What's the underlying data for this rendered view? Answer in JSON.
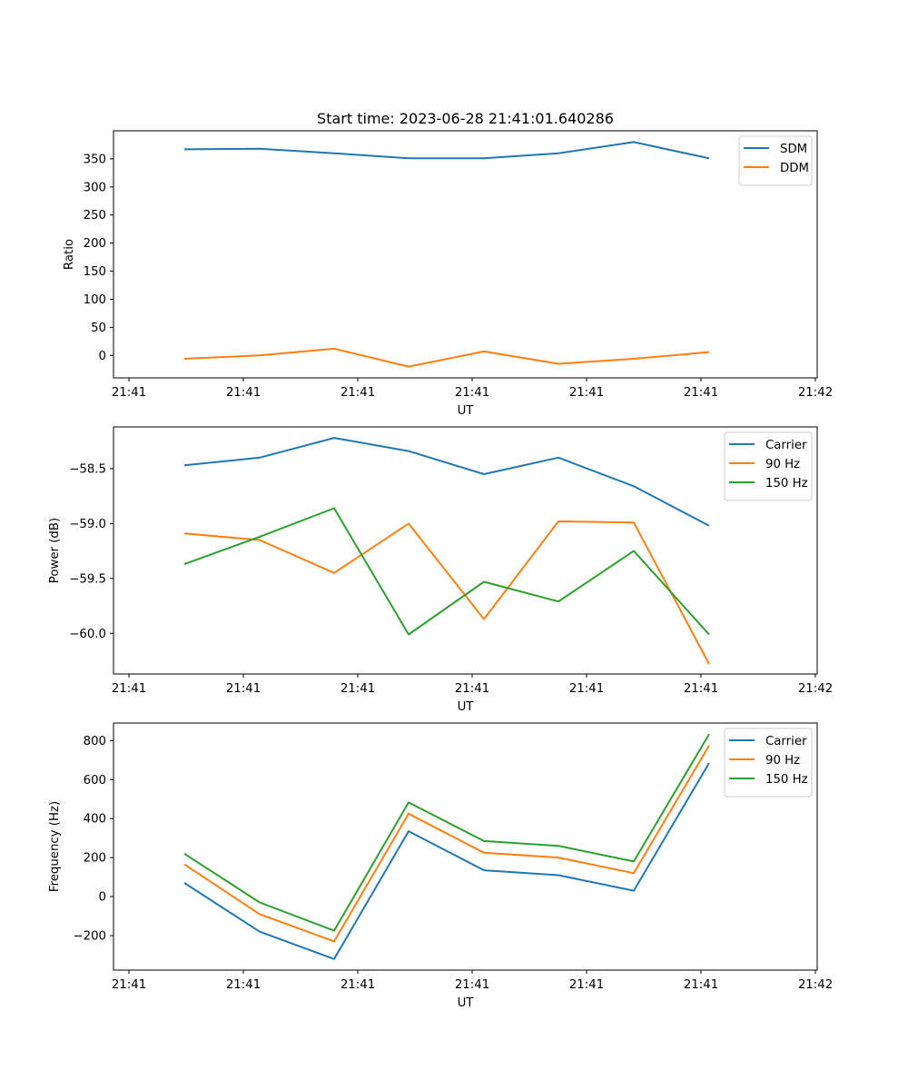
{
  "figure": {
    "title": "Start time: 2023-06-28 21:41:01.640286"
  },
  "chart_data": [
    {
      "type": "line",
      "title": "Start time: 2023-06-28 21:41:01.640286",
      "xlabel": "UT",
      "ylabel": "Ratio",
      "x_tick_labels": [
        "21:41",
        "21:41",
        "21:41",
        "21:41",
        "21:41",
        "21:41",
        "21:42"
      ],
      "y_ticks": [
        0,
        50,
        100,
        150,
        200,
        250,
        300,
        350
      ],
      "ylim": [
        -40,
        400
      ],
      "legend_position": "top-right",
      "grid": false,
      "series": [
        {
          "name": "SDM",
          "color": "#1f77b4",
          "values": [
            367,
            368,
            360,
            351,
            351,
            360,
            380,
            351
          ]
        },
        {
          "name": "DDM",
          "color": "#ff7f0e",
          "values": [
            -6,
            0,
            12,
            -20,
            7,
            -15,
            -6,
            6
          ]
        }
      ]
    },
    {
      "type": "line",
      "title": "",
      "xlabel": "UT",
      "ylabel": "Power (dB)",
      "x_tick_labels": [
        "21:41",
        "21:41",
        "21:41",
        "21:41",
        "21:41",
        "21:41",
        "21:42"
      ],
      "y_ticks": [
        -60.0,
        -59.5,
        -59.0,
        -58.5
      ],
      "y_tick_labels": [
        "−60.0",
        "−59.5",
        "−59.0",
        "−58.5"
      ],
      "ylim": [
        -60.37,
        -58.12
      ],
      "legend_position": "top-right",
      "grid": false,
      "series": [
        {
          "name": "Carrier",
          "color": "#1f77b4",
          "values": [
            -58.47,
            -58.4,
            -58.22,
            -58.34,
            -58.55,
            -58.4,
            -58.66,
            -59.02
          ]
        },
        {
          "name": "90 Hz",
          "color": "#ff7f0e",
          "values": [
            -59.09,
            -59.15,
            -59.45,
            -59.0,
            -59.87,
            -58.98,
            -58.99,
            -60.28
          ]
        },
        {
          "name": "150 Hz",
          "color": "#2ca02c",
          "values": [
            -59.37,
            -59.12,
            -58.86,
            -60.01,
            -59.53,
            -59.71,
            -59.25,
            -60.01
          ]
        }
      ]
    },
    {
      "type": "line",
      "title": "",
      "xlabel": "UT",
      "ylabel": "Frequency (Hz)",
      "x_tick_labels": [
        "21:41",
        "21:41",
        "21:41",
        "21:41",
        "21:41",
        "21:41",
        "21:42"
      ],
      "y_ticks": [
        -200,
        0,
        200,
        400,
        600,
        800
      ],
      "y_tick_labels": [
        "−200",
        "0",
        "200",
        "400",
        "600",
        "800"
      ],
      "ylim": [
        -377,
        890
      ],
      "legend_position": "top-right",
      "grid": false,
      "series": [
        {
          "name": "Carrier",
          "color": "#1f77b4",
          "values": [
            70,
            -180,
            -320,
            335,
            135,
            110,
            30,
            685
          ]
        },
        {
          "name": "90 Hz",
          "color": "#ff7f0e",
          "values": [
            165,
            -90,
            -230,
            425,
            225,
            200,
            120,
            775
          ]
        },
        {
          "name": "150 Hz",
          "color": "#2ca02c",
          "values": [
            220,
            -30,
            -175,
            483,
            285,
            260,
            180,
            833
          ]
        }
      ]
    }
  ]
}
